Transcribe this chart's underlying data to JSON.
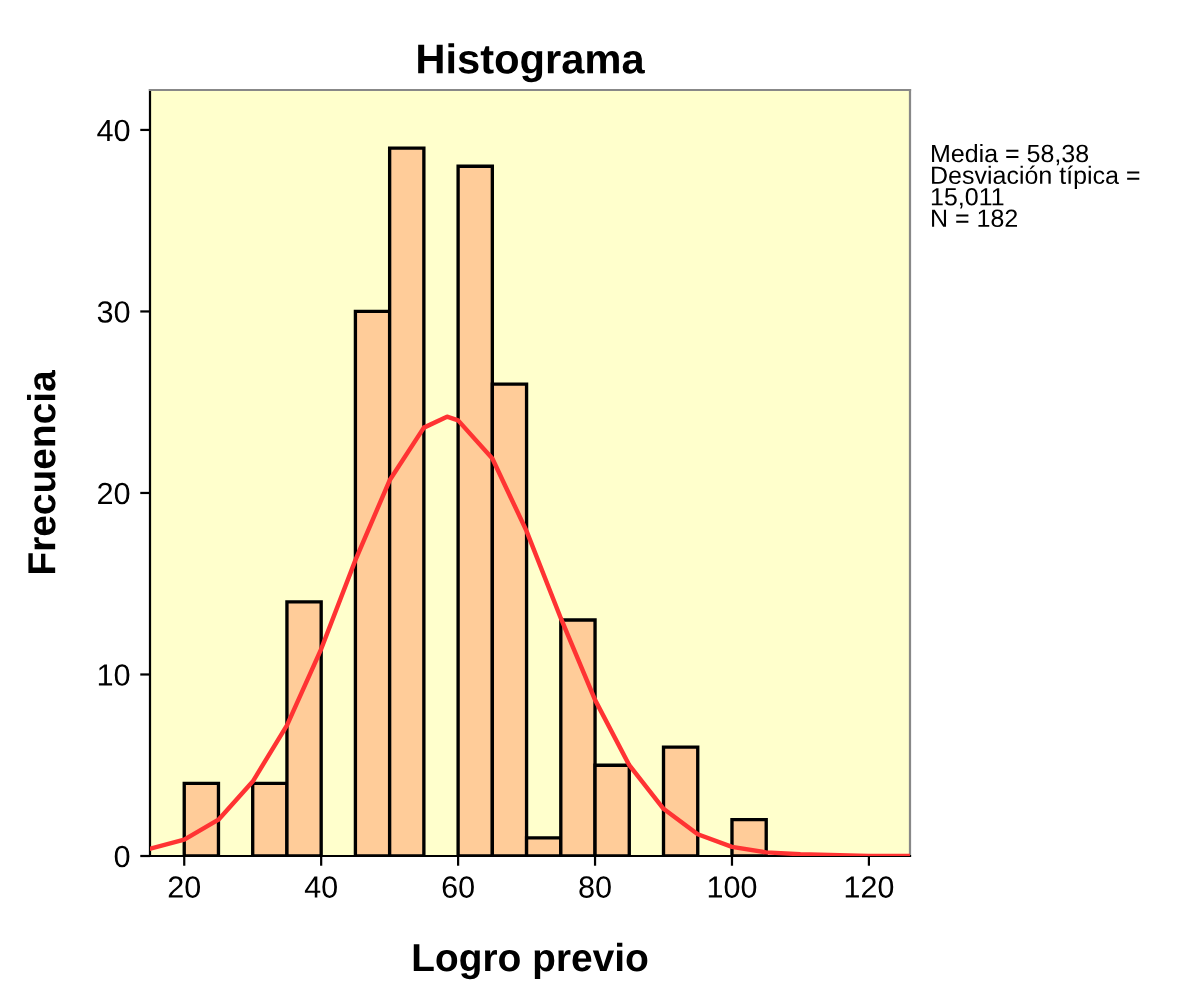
{
  "chart_data": {
    "type": "histogram",
    "title": "Histograma",
    "xlabel": "Logro previo",
    "ylabel": "Frecuencia",
    "series": [
      {
        "color": "#ffcc99",
        "bins": [
          20,
          25,
          30,
          35,
          40,
          45,
          50,
          55,
          60,
          65,
          70,
          75,
          80,
          85,
          90,
          95,
          100,
          105
        ],
        "values": [
          4,
          0,
          4,
          14,
          0,
          30,
          39,
          0,
          38,
          26,
          1,
          13,
          5,
          0,
          6,
          0,
          2
        ]
      },
      {
        "type": "line",
        "color": "#ff3333",
        "x": [
          15,
          20,
          25,
          30,
          35,
          40,
          45,
          50,
          55,
          58.38,
          60,
          65,
          70,
          75,
          80,
          85,
          90,
          95,
          100,
          105,
          110,
          120,
          126
        ],
        "values": [
          0.4,
          0.9,
          2.0,
          4.1,
          7.2,
          11.4,
          16.3,
          20.7,
          23.6,
          24.2,
          24.0,
          21.9,
          17.9,
          13.1,
          8.6,
          5.0,
          2.6,
          1.2,
          0.5,
          0.2,
          0.1,
          0,
          0
        ]
      }
    ],
    "xlim": [
      15,
      126
    ],
    "ylim": [
      0,
      42.2
    ],
    "xticks": [
      20,
      40,
      60,
      80,
      100,
      120
    ],
    "yticks": [
      0,
      10,
      20,
      30,
      40
    ],
    "grid": false,
    "legend": false,
    "annotations": [
      "Media = 58,38\nDesviación típica =\n15,011\nN = 182"
    ]
  }
}
